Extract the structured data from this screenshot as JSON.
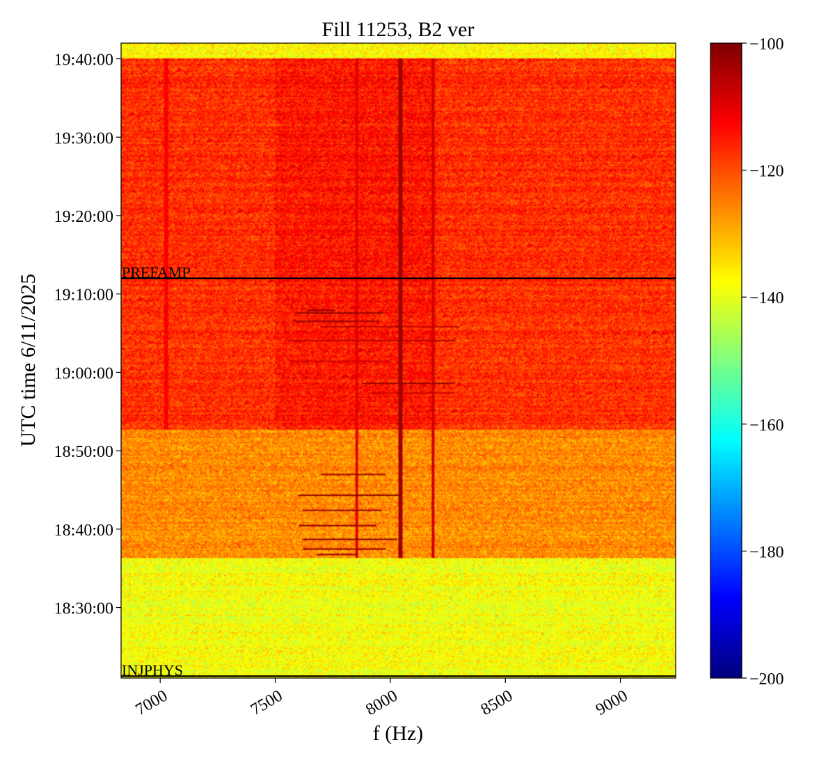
{
  "chart_data": {
    "type": "heatmap",
    "title": "Fill 11253, B2 ver",
    "xlabel": "f (Hz)",
    "ylabel": "UTC time 6/11/2025",
    "xlim": [
      6830,
      9240
    ],
    "ylim_seconds_label": "18:21:00 to 19:42:00",
    "x_ticks": [
      {
        "value": 7000,
        "label": "7000"
      },
      {
        "value": 7500,
        "label": "7500"
      },
      {
        "value": 8000,
        "label": "8000"
      },
      {
        "value": 8500,
        "label": "8500"
      },
      {
        "value": 9000,
        "label": "9000"
      }
    ],
    "y_ticks": [
      {
        "value": "18:30:00",
        "label": "18:30:00"
      },
      {
        "value": "18:40:00",
        "label": "18:40:00"
      },
      {
        "value": "18:50:00",
        "label": "18:50:00"
      },
      {
        "value": "19:00:00",
        "label": "19:00:00"
      },
      {
        "value": "19:10:00",
        "label": "19:10:00"
      },
      {
        "value": "19:20:00",
        "label": "19:20:00"
      },
      {
        "value": "19:30:00",
        "label": "19:30:00"
      },
      {
        "value": "19:40:00",
        "label": "19:40:00"
      }
    ],
    "y_start": "18:21:00",
    "y_end": "19:42:00",
    "colorbar": {
      "colormap": "jet",
      "min": -200,
      "max": -100,
      "ticks": [
        {
          "value": -100,
          "label": "−100"
        },
        {
          "value": -120,
          "label": "−120"
        },
        {
          "value": -140,
          "label": "−140"
        },
        {
          "value": -160,
          "label": "−160"
        },
        {
          "value": -180,
          "label": "−180"
        },
        {
          "value": -200,
          "label": "−200"
        }
      ]
    },
    "regions": [
      {
        "from": "18:21:00",
        "to": "18:36:20",
        "level": -138
      },
      {
        "from": "18:36:20",
        "to": "18:52:40",
        "level": -126
      },
      {
        "from": "18:52:40",
        "to": "19:40:00",
        "level": -117
      },
      {
        "from": "19:40:00",
        "to": "19:42:00",
        "level": -137
      }
    ],
    "markers": [
      {
        "time": "19:12:00",
        "label": "PREFAMP"
      },
      {
        "time": "18:21:15",
        "label": "INJPHYS"
      }
    ],
    "vertical_lines": [
      {
        "freq": 8045,
        "from": "18:36:20",
        "to": "19:40:00",
        "level": -103
      },
      {
        "freq": 8185,
        "from": "18:36:20",
        "to": "19:40:00",
        "level": -108
      },
      {
        "freq": 7855,
        "from": "18:36:20",
        "to": "19:40:00",
        "level": -110
      },
      {
        "freq": 7025,
        "from": "18:52:40",
        "to": "19:40:00",
        "level": -112
      }
    ],
    "lines_bursts": [
      {
        "f0": 7590,
        "f1": 7970,
        "time": "19:07:30",
        "level": -101
      },
      {
        "f0": 7580,
        "f1": 7950,
        "time": "19:06:30",
        "level": -102
      },
      {
        "f0": 7640,
        "f1": 7760,
        "time": "19:08:00",
        "level": -101
      },
      {
        "f0": 7700,
        "f1": 8300,
        "time": "19:05:50",
        "level": -106
      },
      {
        "f0": 7560,
        "f1": 8280,
        "time": "19:04:00",
        "level": -106
      },
      {
        "f0": 7560,
        "f1": 8000,
        "time": "19:01:20",
        "level": -108
      },
      {
        "f0": 7880,
        "f1": 8280,
        "time": "18:58:40",
        "level": -102
      },
      {
        "f0": 7900,
        "f1": 8280,
        "time": "18:57:20",
        "level": -108
      },
      {
        "f0": 7700,
        "f1": 7980,
        "time": "18:47:00",
        "level": -103
      },
      {
        "f0": 7600,
        "f1": 8040,
        "time": "18:44:20",
        "level": -101
      },
      {
        "f0": 7620,
        "f1": 7960,
        "time": "18:42:20",
        "level": -102
      },
      {
        "f0": 7600,
        "f1": 7940,
        "time": "18:40:30",
        "level": -102
      },
      {
        "f0": 7620,
        "f1": 8030,
        "time": "18:38:40",
        "level": -101
      },
      {
        "f0": 7620,
        "f1": 7980,
        "time": "18:37:30",
        "level": -102
      },
      {
        "f0": 7680,
        "f1": 7860,
        "time": "18:36:50",
        "level": -102
      }
    ]
  }
}
